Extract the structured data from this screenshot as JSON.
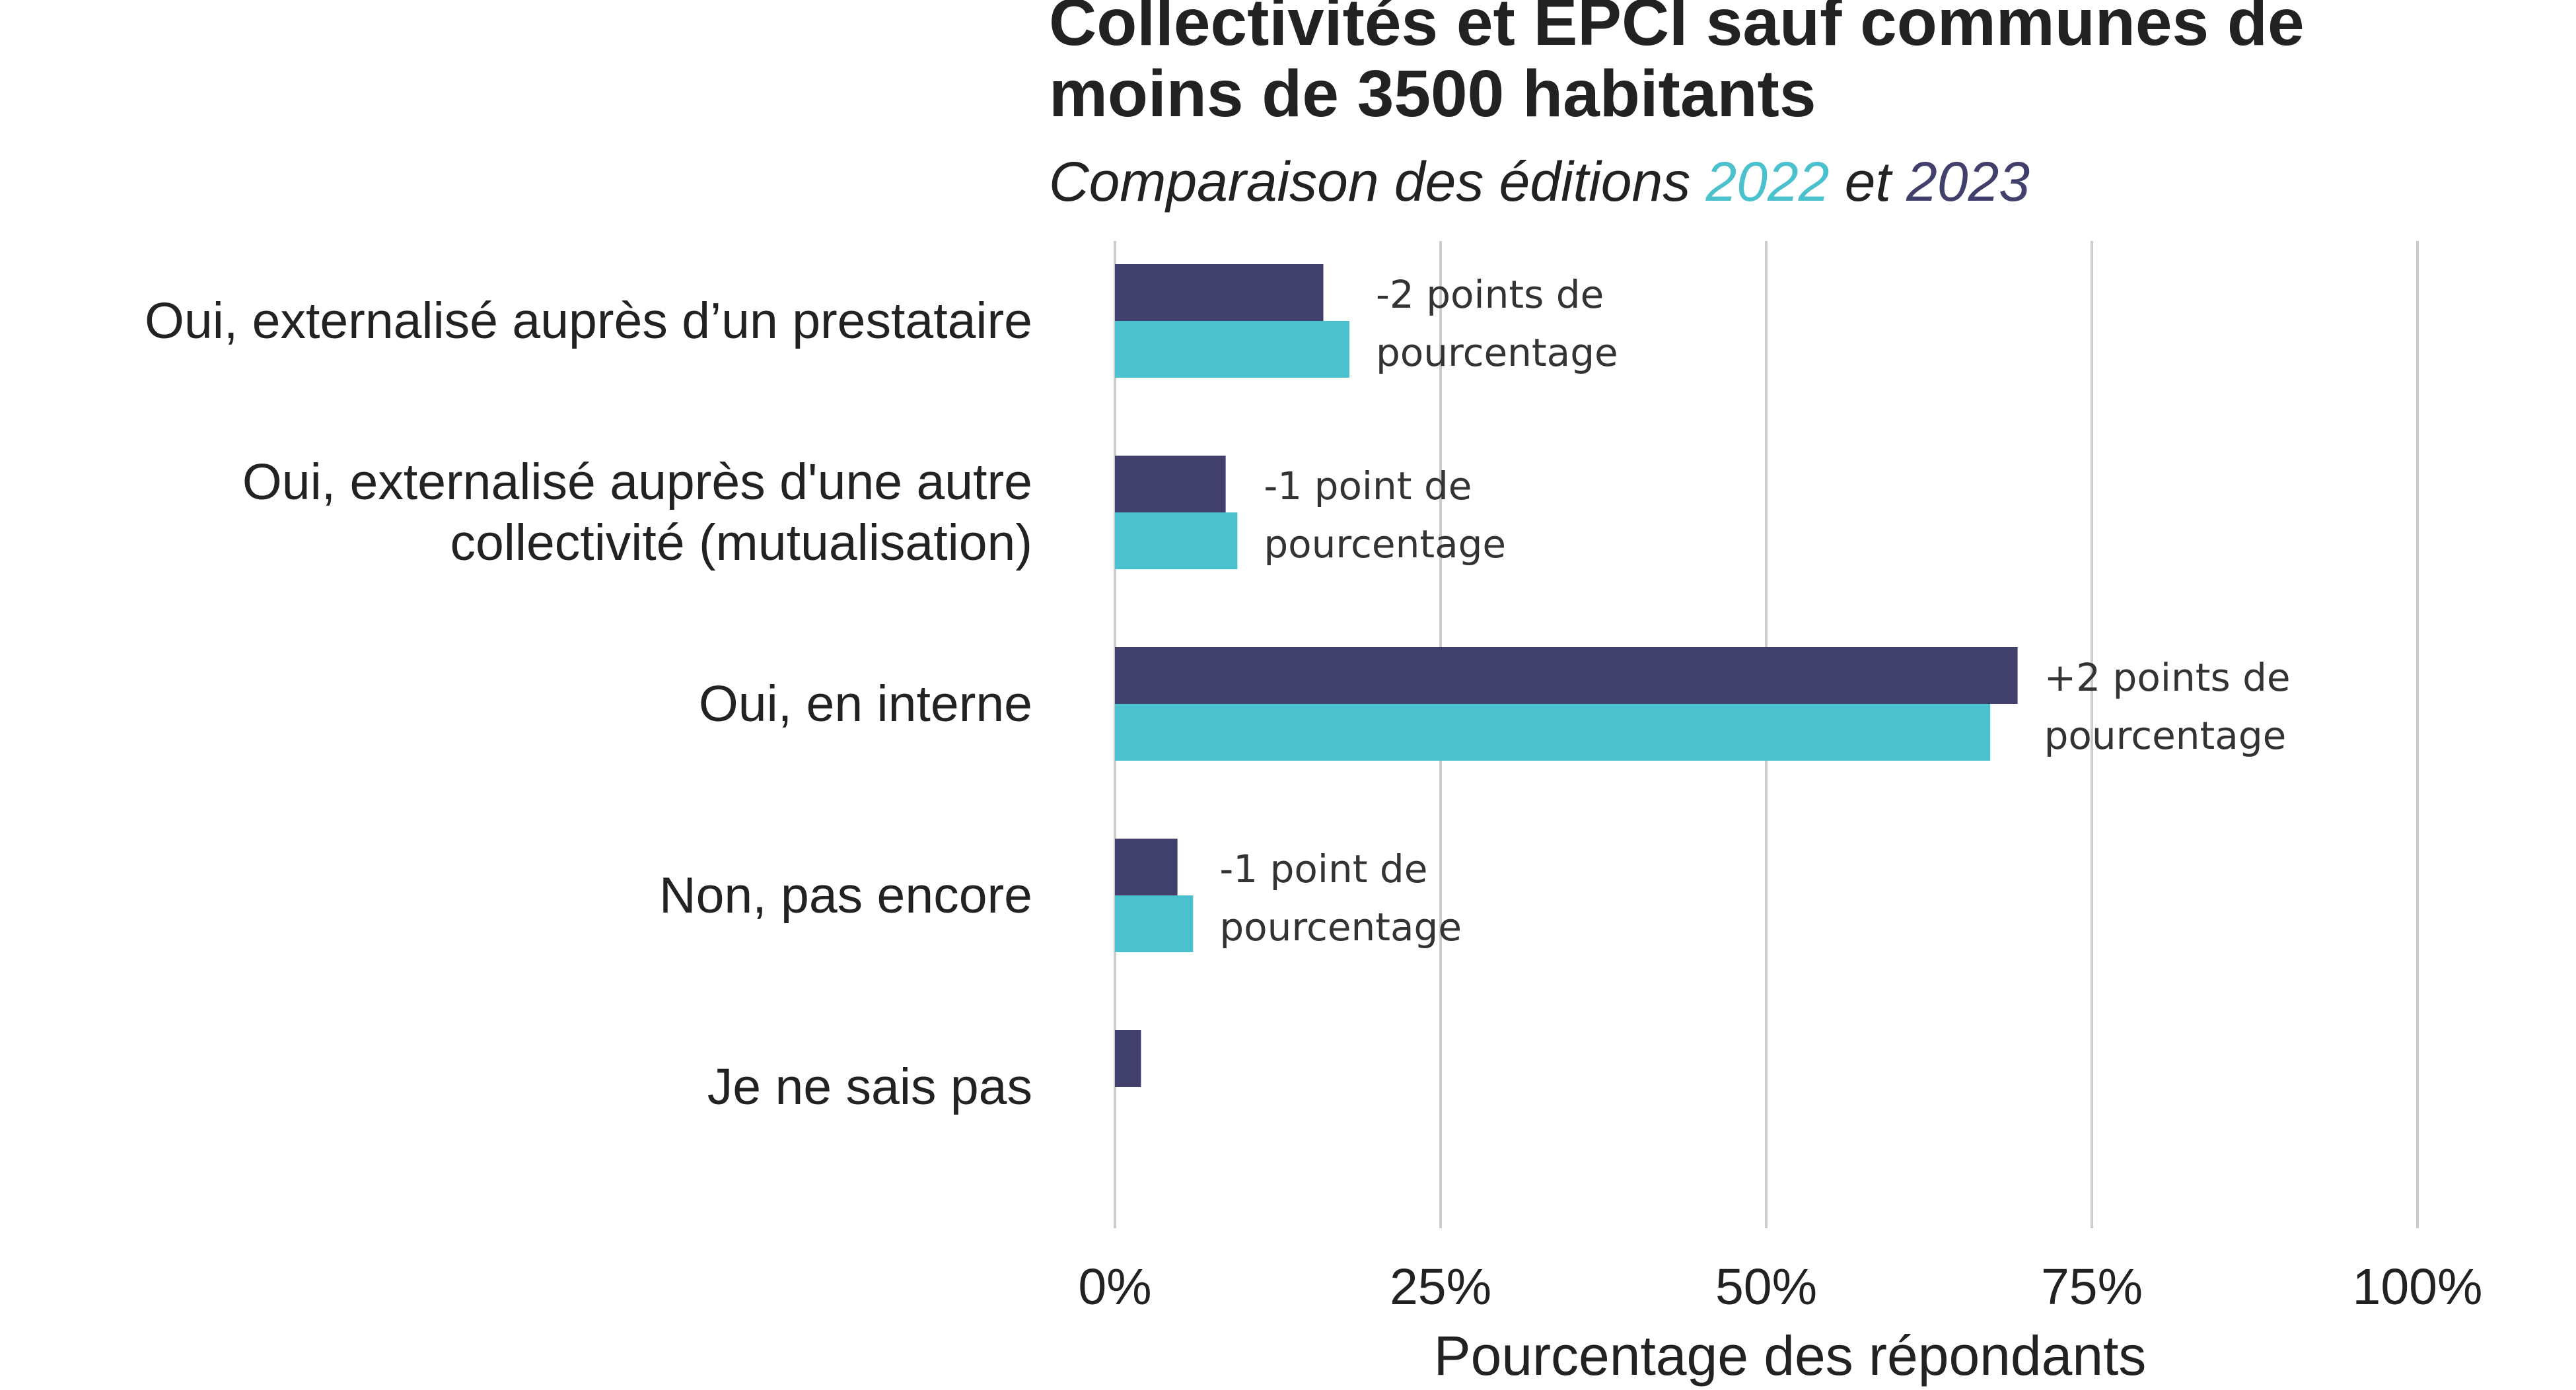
{
  "chart_data": {
    "type": "bar",
    "orientation": "horizontal",
    "title_lines": [
      "Collectivités et EPCI sauf communes de",
      "moins de 3500 habitants"
    ],
    "subtitle": {
      "prefix": "Comparaison des éditions ",
      "year_a": "2022",
      "middle": " et ",
      "year_b": "2023"
    },
    "categories": [
      [
        "Oui, externalisé auprès d’un prestataire"
      ],
      [
        "Oui, externalisé auprès d'une autre",
        "collectivité (mutualisation)"
      ],
      [
        "Oui, en interne"
      ],
      [
        "Non, pas encore"
      ],
      [
        "Je ne sais pas"
      ]
    ],
    "series": [
      {
        "name": "2023",
        "color": "#413f6b",
        "values": [
          16,
          8.5,
          69.3,
          4.8,
          2
        ]
      },
      {
        "name": "2022",
        "color": "#4bc1ce",
        "values": [
          18,
          9.4,
          67.2,
          6,
          null
        ]
      }
    ],
    "annotations": [
      [
        "-2 points de",
        "pourcentage"
      ],
      [
        "-1 point de",
        "pourcentage"
      ],
      [
        "+2 points de",
        "pourcentage"
      ],
      [
        "-1 point de",
        "pourcentage"
      ],
      null
    ],
    "xlim": [
      0,
      100
    ],
    "x_ticks": [
      0,
      25,
      50,
      75,
      100
    ],
    "x_tick_labels": [
      "0%",
      "25%",
      "50%",
      "75%",
      "100%"
    ],
    "xlabel": "Pourcentage des répondants",
    "grid": "vertical",
    "legend": "none (colors explained in subtitle)"
  }
}
